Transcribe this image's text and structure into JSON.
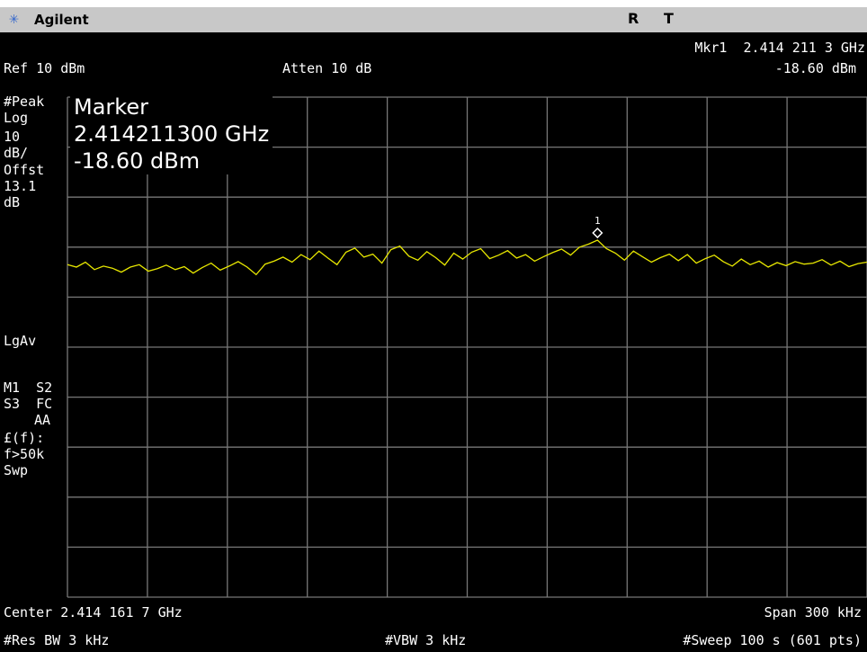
{
  "header": {
    "brand": "Agilent",
    "status_r": "R",
    "status_t": "T"
  },
  "top": {
    "marker_readout": "Mkr1  2.414 211 3 GHz",
    "ref_level": "Ref 10 dBm",
    "attenuation": "Atten 10 dB",
    "marker_amplitude": "-18.60 dBm"
  },
  "side_panel": [
    "#Peak",
    "Log",
    "10",
    "dB/",
    "Offst",
    "13.1",
    "dB",
    "LgAv",
    "M1  S2",
    "S3  FC",
    "AA",
    "£(f):",
    "f>50k",
    "Swp"
  ],
  "marker_box": {
    "title": "Marker",
    "frequency": "2.414211300 GHz",
    "amplitude": "-18.60 dBm",
    "label": "1"
  },
  "bottom": {
    "center": "Center 2.414 161 7 GHz",
    "span": "Span 300 kHz",
    "res_bw": "#Res BW 3 kHz",
    "vbw": "#VBW 3 kHz",
    "sweep": "#Sweep 100 s (601 pts)"
  },
  "trace": {
    "color": "#e8e800",
    "ylim": [
      -90,
      10
    ],
    "values": [
      -23.5,
      -24,
      -23,
      -24.5,
      -23.8,
      -24.2,
      -25,
      -24,
      -23.5,
      -24.8,
      -24.3,
      -23.6,
      -24.5,
      -23.9,
      -25.2,
      -24.1,
      -23.2,
      -24.6,
      -23.8,
      -22.9,
      -24,
      -25.5,
      -23.4,
      -22.8,
      -22,
      -23,
      -21.5,
      -22.5,
      -20.8,
      -22.2,
      -23.5,
      -21,
      -20.2,
      -22,
      -21.4,
      -23.2,
      -20.5,
      -19.8,
      -21.8,
      -22.6,
      -20.9,
      -22.1,
      -23.6,
      -21.2,
      -22.4,
      -21,
      -20.3,
      -22.3,
      -21.6,
      -20.7,
      -22.2,
      -21.5,
      -22.8,
      -21.9,
      -21.1,
      -20.4,
      -21.6,
      -20,
      -19.4,
      -18.6,
      -20.3,
      -21.2,
      -22.6,
      -20.8,
      -21.9,
      -23,
      -22.1,
      -21.4,
      -22.7,
      -21.5,
      -23.2,
      -22.3,
      -21.6,
      -22.9,
      -23.8,
      -22.4,
      -23.5,
      -22.8,
      -24,
      -23.1,
      -23.7,
      -22.9,
      -23.4,
      -23.2,
      -22.5,
      -23.6,
      -22.8,
      -23.9,
      -23.3,
      -23
    ]
  }
}
